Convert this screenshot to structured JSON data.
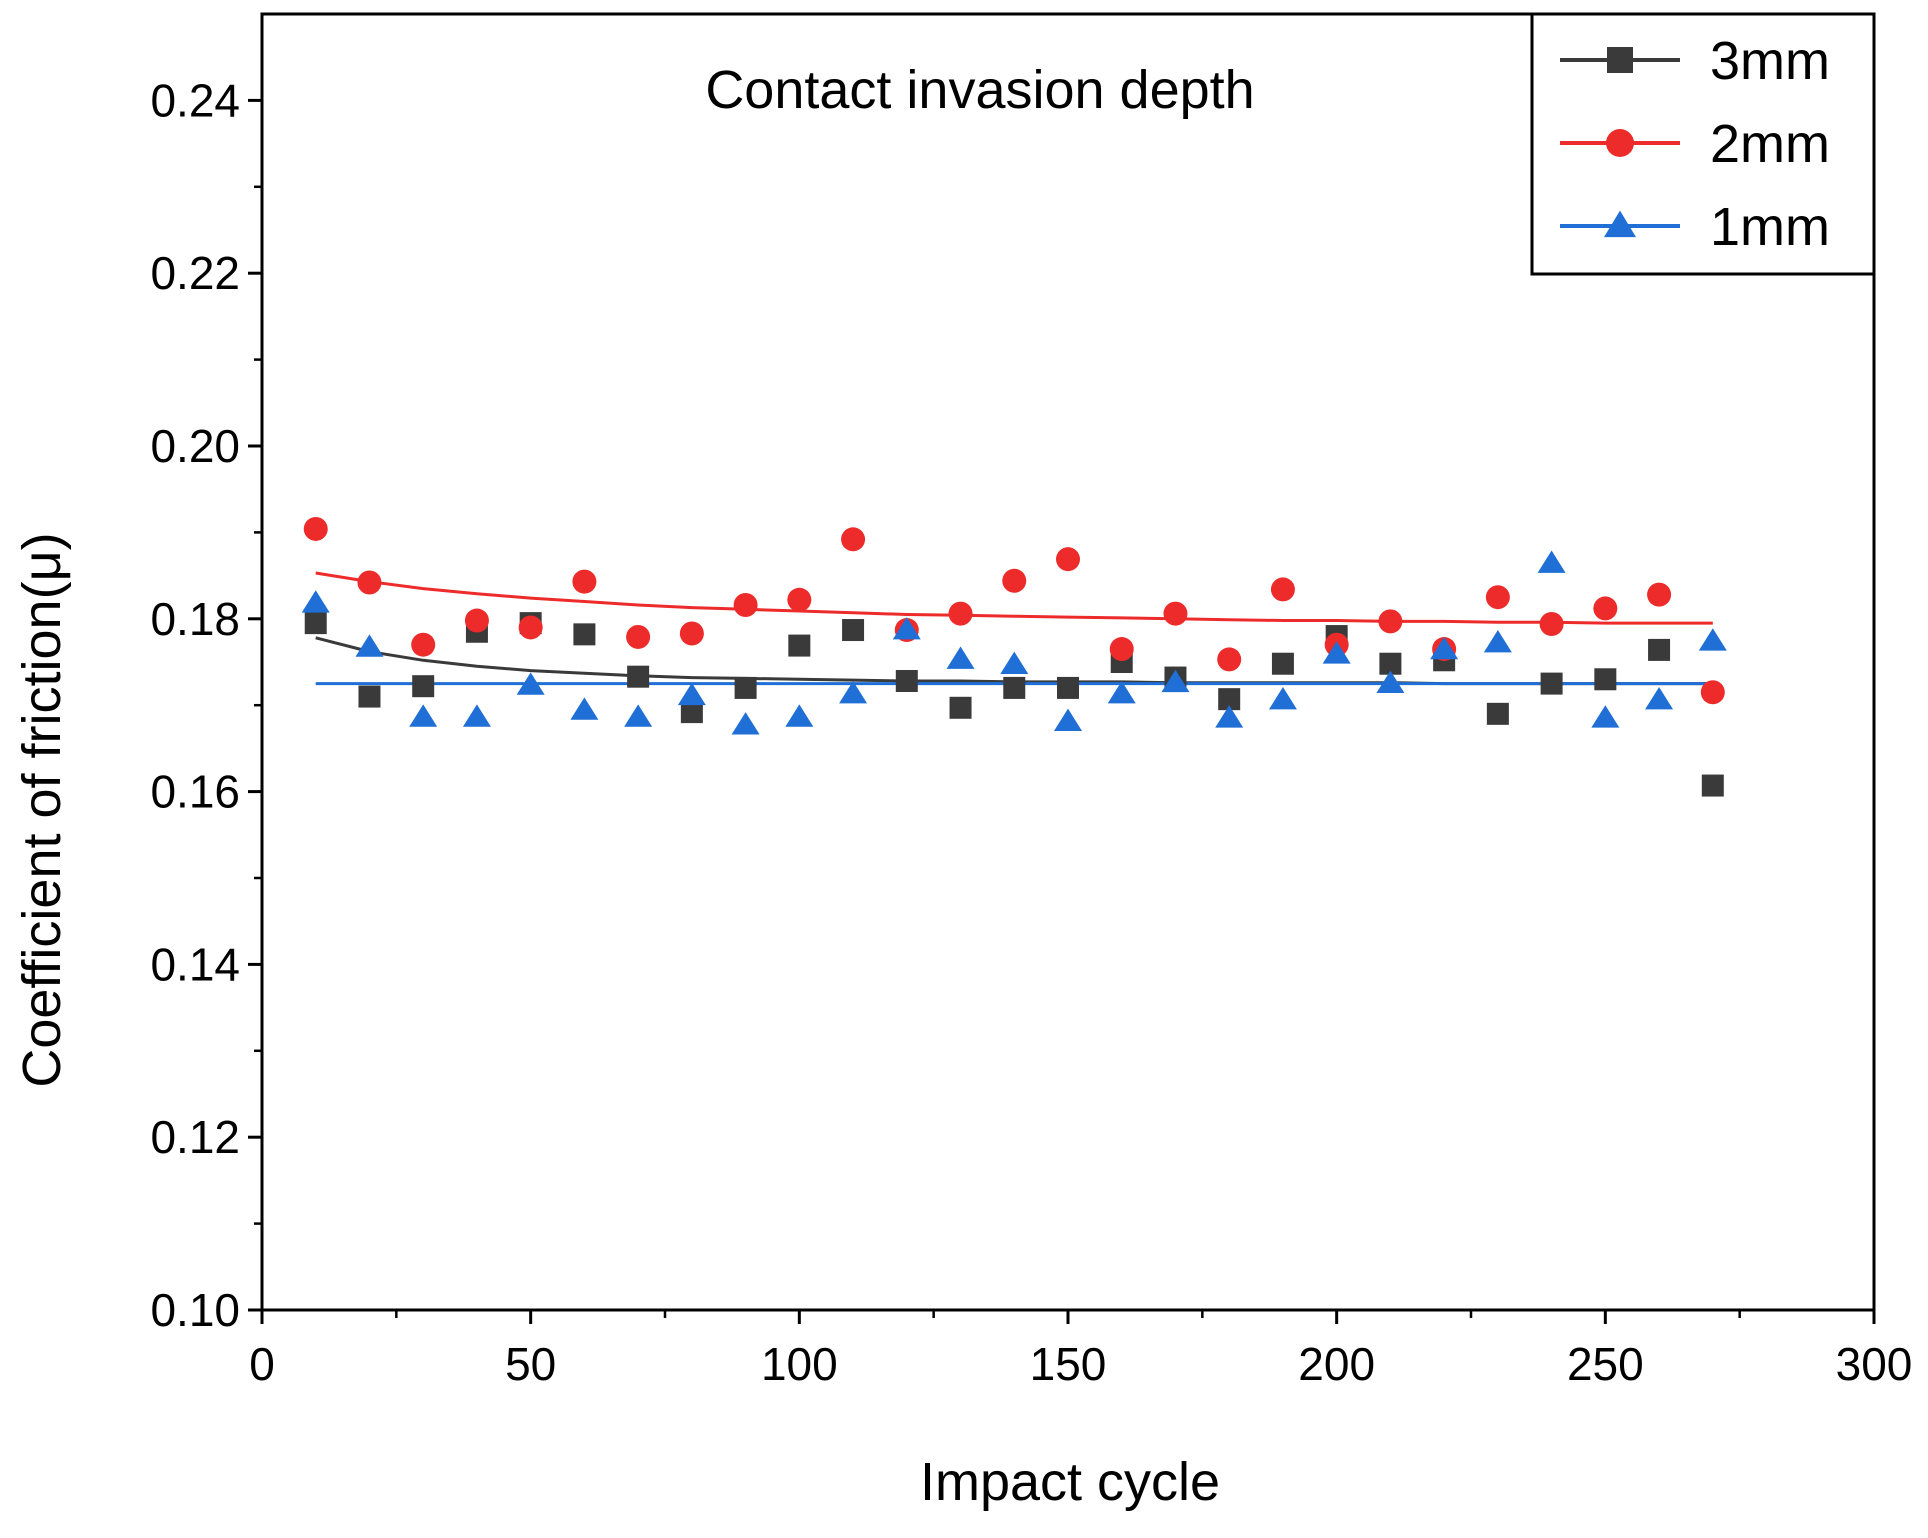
{
  "chart_data": {
    "type": "scatter",
    "title": "Contact invasion depth",
    "xlabel": "Impact cycle",
    "ylabel": "Coefficient of friction(μ)",
    "xlim": [
      0,
      300
    ],
    "ylim": [
      0.1,
      0.25
    ],
    "xticks": [
      0,
      50,
      100,
      150,
      200,
      250,
      300
    ],
    "xtick_labels": [
      "0",
      "50",
      "100",
      "150",
      "200",
      "250",
      "300"
    ],
    "yticks": [
      0.1,
      0.12,
      0.14,
      0.16,
      0.18,
      0.2,
      0.22,
      0.24
    ],
    "ytick_labels": [
      "0.10",
      "0.12",
      "0.14",
      "0.16",
      "0.18",
      "0.20",
      "0.22",
      "0.24"
    ],
    "grid": false,
    "legend_position": "top-right",
    "x": [
      10,
      20,
      30,
      40,
      50,
      60,
      70,
      80,
      90,
      100,
      110,
      120,
      130,
      140,
      150,
      160,
      170,
      180,
      190,
      200,
      210,
      220,
      230,
      240,
      250,
      260,
      270
    ],
    "series": [
      {
        "name": "3mm",
        "color": "#3a3a3a",
        "marker": "square",
        "values": [
          0.1795,
          0.171,
          0.1722,
          0.1785,
          0.1795,
          0.1782,
          0.1733,
          0.1692,
          0.172,
          0.1769,
          0.1787,
          0.1728,
          0.1697,
          0.172,
          0.172,
          0.175,
          0.1732,
          0.1707,
          0.1748,
          0.178,
          0.1748,
          0.1752,
          0.169,
          0.1725,
          0.173,
          0.1764,
          0.1607
        ],
        "fit": [
          0.1778,
          0.1762,
          0.1752,
          0.1745,
          0.174,
          0.1737,
          0.1734,
          0.1732,
          0.1731,
          0.173,
          0.1729,
          0.1728,
          0.1728,
          0.1727,
          0.1727,
          0.1727,
          0.1726,
          0.1726,
          0.1726,
          0.1726,
          0.1726,
          0.1725,
          0.1725,
          0.1725,
          0.1725,
          0.1725,
          0.1725
        ]
      },
      {
        "name": "2mm",
        "color": "#ee2b2b",
        "marker": "circle",
        "values": [
          0.1904,
          0.1842,
          0.177,
          0.1798,
          0.179,
          0.1843,
          0.1779,
          0.1783,
          0.1816,
          0.1822,
          0.1892,
          0.1787,
          0.1806,
          0.1844,
          0.1869,
          0.1765,
          0.1806,
          0.1753,
          0.1834,
          0.177,
          0.1797,
          0.1765,
          0.1825,
          0.1794,
          0.1812,
          0.1828,
          0.1715
        ],
        "fit": [
          0.1853,
          0.1843,
          0.1835,
          0.1829,
          0.1824,
          0.182,
          0.1816,
          0.1813,
          0.1811,
          0.1809,
          0.1807,
          0.1805,
          0.1804,
          0.1803,
          0.1802,
          0.1801,
          0.18,
          0.1799,
          0.1798,
          0.1798,
          0.1797,
          0.1797,
          0.1796,
          0.1796,
          0.1795,
          0.1795,
          0.1795
        ]
      },
      {
        "name": "1mm",
        "color": "#1f6fd6",
        "marker": "triangle",
        "values": [
          0.1818,
          0.1767,
          0.1686,
          0.1686,
          0.1723,
          0.1694,
          0.1686,
          0.1711,
          0.1677,
          0.1686,
          0.1713,
          0.1787,
          0.1753,
          0.1747,
          0.1681,
          0.1713,
          0.1726,
          0.1685,
          0.1706,
          0.1759,
          0.1725,
          0.1764,
          0.1772,
          0.1864,
          0.1685,
          0.1706,
          0.1774
        ],
        "fit": [
          0.1725,
          0.1725,
          0.1725,
          0.1725,
          0.1725,
          0.1725,
          0.1725,
          0.1725,
          0.1725,
          0.1725,
          0.1725,
          0.1725,
          0.1725,
          0.1725,
          0.1725,
          0.1725,
          0.1725,
          0.1725,
          0.1725,
          0.1725,
          0.1725,
          0.1725,
          0.1725,
          0.1725,
          0.1725,
          0.1725,
          0.1725
        ]
      }
    ]
  }
}
